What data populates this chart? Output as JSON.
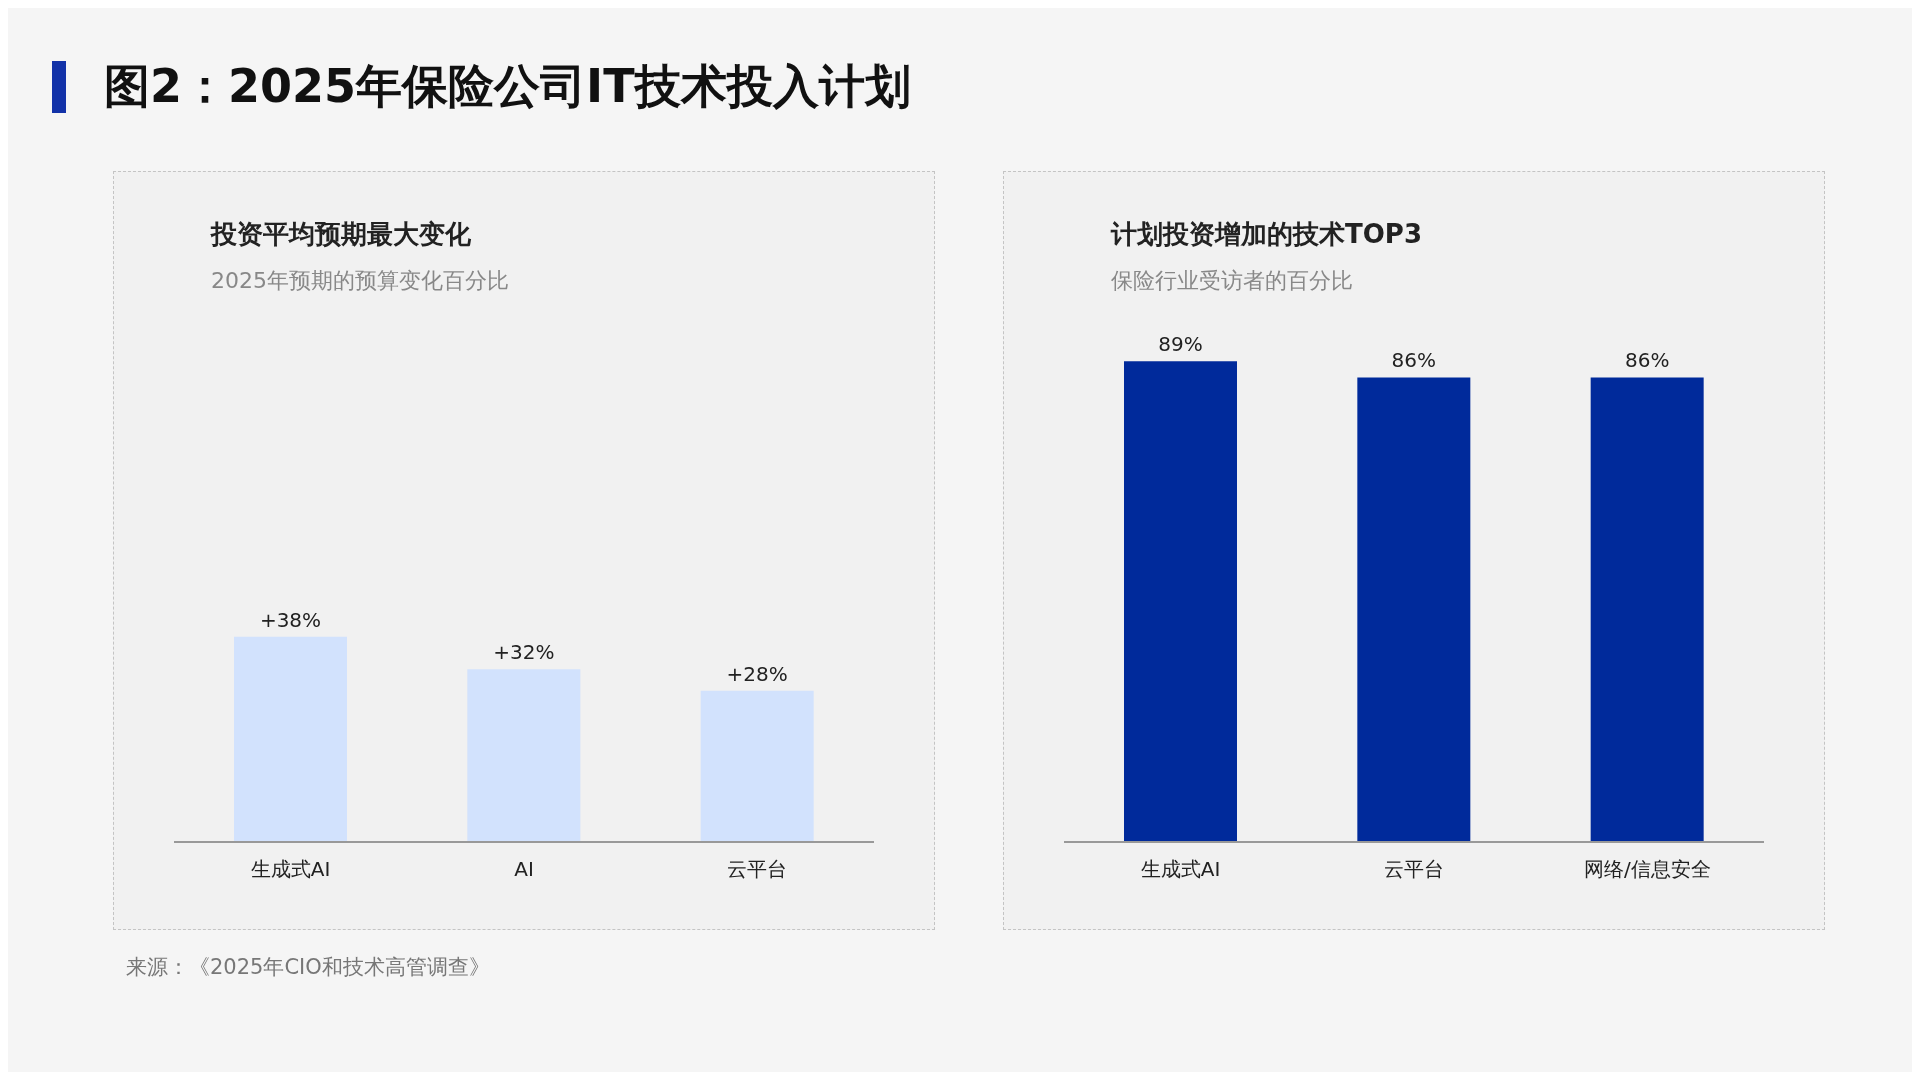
{
  "chart_data": [
    {
      "type": "other",
      "title": "图2：2025年保险公司IT技术投入计划"
    },
    {
      "type": "bar",
      "title": "投资平均预期最大变化",
      "subtitle": "2025年预期的预算变化百分比",
      "categories": [
        "生成式AI",
        "AI",
        "云平台"
      ],
      "values": [
        38,
        32,
        28
      ],
      "value_labels": [
        "+38%",
        "+32%",
        "+28%"
      ],
      "color": "#d2e2fd",
      "grid": false,
      "legend": false
    },
    {
      "type": "bar",
      "title": "计划投资增加的技术TOP3",
      "subtitle": "保险行业受访者的百分比",
      "categories": [
        "生成式AI",
        "云平台",
        "网络/信息安全"
      ],
      "values": [
        89,
        86,
        86
      ],
      "value_labels": [
        "89%",
        "86%",
        "86%"
      ],
      "color": "#002a9b",
      "grid": false,
      "legend": false
    },
    {
      "type": "other",
      "annotations": [
        "来源：《2025年CIO和技术高管调查》"
      ]
    }
  ]
}
